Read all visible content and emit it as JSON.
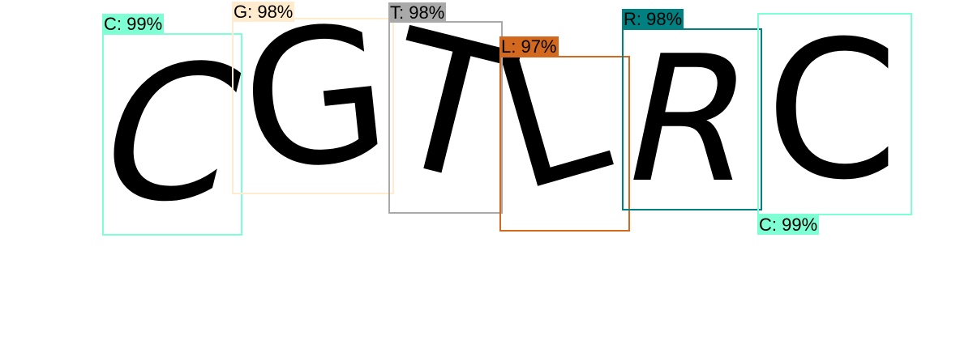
{
  "detections": [
    {
      "char": "C",
      "label": "C: 99%",
      "color": "#7fffd4",
      "text_color": "#000000"
    },
    {
      "char": "G",
      "label": "G: 98%",
      "color": "#ffebcd",
      "text_color": "#000000"
    },
    {
      "char": "T",
      "label": "T: 98%",
      "color": "#a9a9a9",
      "text_color": "#000000"
    },
    {
      "char": "L",
      "label": "L: 97%",
      "color": "#d2691e",
      "text_color": "#000000"
    },
    {
      "char": "R",
      "label": "R: 98%",
      "color": "#008080",
      "text_color": "#000000"
    },
    {
      "char": "C",
      "label": "C: 99%",
      "color": "#7fffd4",
      "text_color": "#000000"
    }
  ]
}
